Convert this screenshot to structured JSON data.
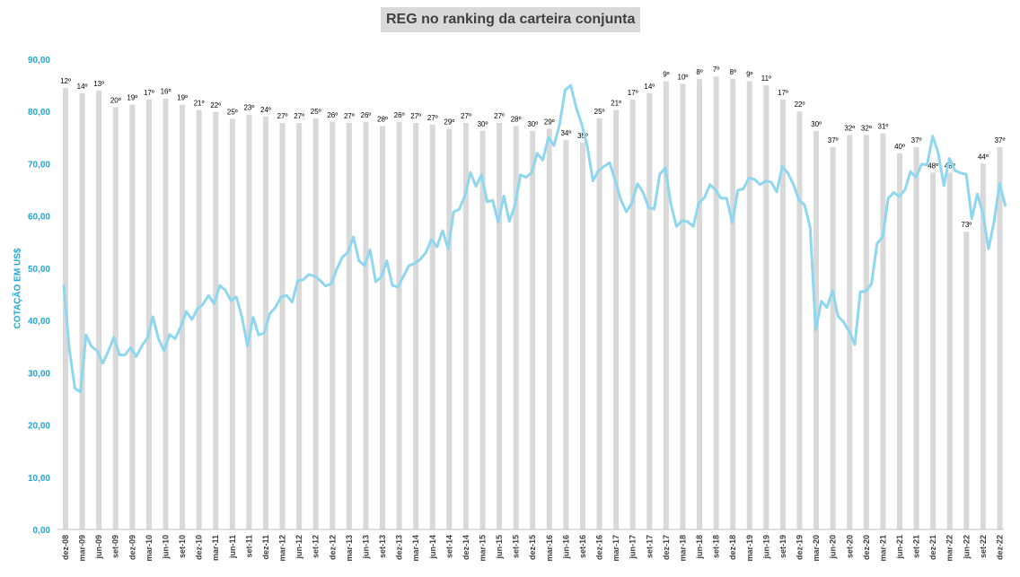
{
  "chart_data": {
    "type": "bar",
    "title": "REG no ranking da carteira conjunta",
    "ylabel": "COTAÇÃO EM US$",
    "ylim": [
      0,
      90
    ],
    "yticks": [
      "0,00",
      "10,00",
      "20,00",
      "30,00",
      "40,00",
      "50,00",
      "60,00",
      "70,00",
      "80,00",
      "90,00"
    ],
    "x_tick_labels": [
      "dez-08",
      "mar-09",
      "jun-09",
      "set-09",
      "dez-09",
      "mar-10",
      "jun-10",
      "set-10",
      "dez-10",
      "mar-11",
      "jun-11",
      "set-11",
      "dez-11",
      "mar-12",
      "jun-12",
      "set-12",
      "dez-12",
      "mar-13",
      "jun-13",
      "set-13",
      "dez-13",
      "mar-14",
      "jun-14",
      "set-14",
      "dez-14",
      "mar-15",
      "jun-15",
      "set-15",
      "dez-15",
      "mar-16",
      "jun-16",
      "set-16",
      "dez-16",
      "mar-17",
      "jun-17",
      "set-17",
      "dez-17",
      "mar-18",
      "jun-18",
      "set-18",
      "dez-18",
      "mar-19",
      "jun-19",
      "set-19",
      "dez-19",
      "mar-20",
      "jun-20",
      "set-20",
      "dez-20",
      "mar-21",
      "jun-21",
      "set-21",
      "dez-21",
      "mar-22",
      "jun-22",
      "set-22",
      "dez-22"
    ],
    "grid": false,
    "legend": "none",
    "series": [
      {
        "type": "bar",
        "color": "#d9d9d9",
        "ranking_labels": [
          "12º",
          "14º",
          "13º",
          "20º",
          "19º",
          "17º",
          "16º",
          "19º",
          "21º",
          "22º",
          "25º",
          "23º",
          "24º",
          "27º",
          "27º",
          "25º",
          "26º",
          "27º",
          "26º",
          "28º",
          "26º",
          "27º",
          "27º",
          "29º",
          "27º",
          "30º",
          "27º",
          "28º",
          "30º",
          "29º",
          "34º",
          "35º",
          "25º",
          "21º",
          "17º",
          "14º",
          "9º",
          "10º",
          "8º",
          "7º",
          "8º",
          "9º",
          "11º",
          "17º",
          "22º",
          "30º",
          "37º",
          "32º",
          "32º",
          "31º",
          "40º",
          "37º",
          "48º",
          "48º",
          "73º",
          "44º",
          "37º"
        ],
        "values": [
          84.5,
          83.5,
          84,
          80.8,
          81.3,
          82.3,
          82.5,
          81.3,
          80.3,
          79.9,
          78.6,
          79.4,
          79,
          77.8,
          77.8,
          78.7,
          78,
          77.8,
          78,
          77.2,
          78,
          77.8,
          77.5,
          76.7,
          77.8,
          76.3,
          77.8,
          77.2,
          76.3,
          76.7,
          74.5,
          74,
          78.7,
          80.3,
          82.3,
          83.5,
          85.8,
          85.3,
          86.2,
          86.7,
          86.2,
          85.8,
          85,
          82.3,
          80,
          76.3,
          73.2,
          75.5,
          75.5,
          75.8,
          72,
          73.2,
          68.3,
          68.3,
          57,
          70,
          73.2
        ]
      },
      {
        "type": "line",
        "color": "#8fd7ee",
        "values": [
          46.6,
          34.5,
          27.0,
          26.3,
          37.2,
          35.0,
          34.2,
          31.8,
          34.1,
          36.8,
          33.4,
          33.4,
          34.8,
          33.1,
          35.1,
          36.6,
          40.7,
          36.5,
          34.2,
          37.3,
          36.5,
          38.8,
          41.7,
          40.2,
          42.2,
          43.1,
          44.8,
          43.2,
          46.7,
          45.8,
          43.8,
          44.5,
          40.6,
          35.1,
          40.6,
          37.2,
          37.6,
          41.3,
          42.5,
          44.5,
          44.8,
          43.5,
          47.6,
          47.8,
          48.8,
          48.5,
          47.7,
          46.6,
          47.0,
          49.8,
          52.1,
          53.0,
          56.0,
          51.4,
          50.5,
          53.5,
          47.4,
          48.3,
          51.4,
          46.7,
          46.4,
          48.5,
          50.5,
          50.9,
          51.7,
          53.0,
          55.5,
          54.1,
          57.2,
          53.7,
          60.8,
          61.3,
          63.8,
          68.3,
          65.7,
          67.9,
          62.7,
          63.0,
          58.8,
          63.8,
          59.0,
          62.0,
          67.9,
          67.4,
          68.3,
          72.0,
          70.7,
          75.0,
          73.5,
          77.5,
          84.1,
          85.0,
          80.7,
          77.5,
          73.2,
          66.7,
          68.7,
          69.5,
          70.2,
          66.8,
          63.1,
          60.8,
          62.5,
          66.2,
          64.5,
          61.6,
          61.3,
          68.0,
          69.2,
          62.2,
          58.0,
          59.1,
          58.9,
          58.0,
          62.5,
          63.5,
          66.0,
          65.0,
          63.4,
          63.4,
          58.7,
          64.9,
          65.2,
          67.3,
          67.0,
          66.0,
          66.7,
          66.5,
          64.6,
          69.5,
          68.2,
          66.0,
          63.0,
          62.1,
          57.8,
          38.2,
          43.7,
          42.5,
          45.7,
          40.8,
          39.7,
          37.9,
          35.4,
          45.5,
          45.6,
          47.0,
          54.7,
          56.0,
          63.4,
          64.5,
          63.7,
          65.0,
          68.5,
          67.4,
          69.9,
          69.8,
          75.3,
          72.0,
          65.8,
          71.0,
          68.7,
          68.2,
          68.0,
          59.5,
          64.2,
          60.5,
          53.7,
          58.9,
          66.2,
          62.0
        ]
      }
    ]
  }
}
